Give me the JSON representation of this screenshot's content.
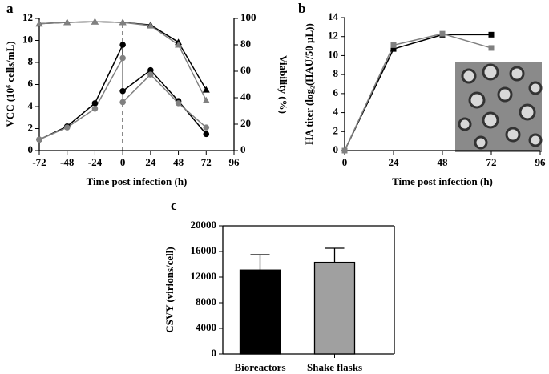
{
  "chart_data": [
    {
      "type": "line",
      "label": "a",
      "xlabel": "Time post infection (h)",
      "ylabel": "VCC (10⁶ cells/mL)",
      "y2label": "Viability (%)",
      "x": [
        -72,
        -48,
        -24,
        0,
        0,
        24,
        48,
        72
      ],
      "xlim": [
        -72,
        96
      ],
      "xticks": [
        -72,
        -48,
        -24,
        0,
        24,
        48,
        72,
        96
      ],
      "ylim": [
        0,
        12
      ],
      "yticks": [
        0,
        2,
        4,
        6,
        8,
        10,
        12
      ],
      "y2lim": [
        0,
        100
      ],
      "y2ticks": [
        0,
        20,
        40,
        60,
        80,
        100
      ],
      "series": [
        {
          "color": "#000000",
          "marker": "circle",
          "values": [
            1.0,
            2.2,
            4.3,
            9.6,
            5.4,
            7.3,
            4.5,
            1.5
          ]
        },
        {
          "color": "#808080",
          "marker": "circle",
          "values": [
            1.0,
            2.1,
            3.8,
            8.4,
            4.4,
            6.9,
            4.3,
            2.1
          ]
        },
        {
          "color": "#000000",
          "marker": "triangle",
          "axis": "y2",
          "x": [
            -72,
            -48,
            -24,
            0,
            24,
            48,
            72
          ],
          "values": [
            96,
            97,
            97.5,
            97,
            95,
            82,
            46
          ]
        },
        {
          "color": "#808080",
          "marker": "triangle",
          "axis": "y2",
          "x": [
            -72,
            -48,
            -24,
            0,
            24,
            48,
            72
          ],
          "values": [
            96,
            97,
            97.5,
            97,
            94.5,
            80,
            38
          ]
        }
      ]
    },
    {
      "type": "line",
      "label": "b",
      "xlabel": "Time post infection (h)",
      "ylabel": "HA titer (log₂(HAU/50 µL))",
      "x": [
        0,
        24,
        48,
        72
      ],
      "xlim": [
        0,
        96
      ],
      "xticks": [
        0,
        24,
        48,
        72,
        96
      ],
      "ylim": [
        0,
        14
      ],
      "yticks": [
        0,
        2,
        4,
        6,
        8,
        10,
        12,
        14
      ],
      "series": [
        {
          "color": "#000000",
          "marker": "square",
          "values": [
            0,
            10.7,
            12.2,
            12.2
          ]
        },
        {
          "color": "#808080",
          "marker": "square",
          "values": [
            0,
            11.1,
            12.3,
            10.8
          ]
        }
      ]
    },
    {
      "type": "bar",
      "label": "c",
      "ylabel": "CSVY (virions/cell)",
      "categories": [
        "Bioreactors",
        "Shake flasks"
      ],
      "values": [
        13100,
        14300
      ],
      "errors": [
        2400,
        2200
      ],
      "colors": [
        "#000000",
        "#a0a0a0"
      ],
      "ylim": [
        0,
        20000
      ],
      "yticks": [
        0,
        4000,
        8000,
        12000,
        16000,
        20000
      ]
    }
  ]
}
